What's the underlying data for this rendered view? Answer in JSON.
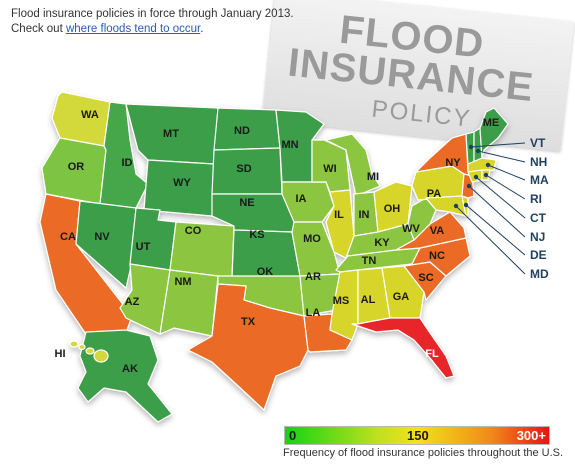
{
  "intro": {
    "line1": "Flood insurance policies in force through January 2013.",
    "line2_prefix": "Check out ",
    "link": "where floods tend to occur",
    "line2_suffix": "."
  },
  "stamp": {
    "line1": "FLOOD",
    "line2": "INSURANCE",
    "line3": "POLICY"
  },
  "legend": {
    "min": "0",
    "mid": "150",
    "max": "300+",
    "caption": "Frequency of flood insurance policies throughout the U.S.",
    "colors": [
      "#12d412",
      "#bfe020",
      "#f3e21a",
      "#f08a1a",
      "#e81414"
    ]
  },
  "states": [
    {
      "id": "wa",
      "label": "WA",
      "color": "#d4d93a"
    },
    {
      "id": "or",
      "label": "OR",
      "color": "#7cc443"
    },
    {
      "id": "ca",
      "label": "CA",
      "color": "#ea6a25"
    },
    {
      "id": "id",
      "label": "ID",
      "color": "#45a74a"
    },
    {
      "id": "nv",
      "label": "NV",
      "color": "#3e9e48"
    },
    {
      "id": "mt",
      "label": "MT",
      "color": "#3e9e48"
    },
    {
      "id": "wy",
      "label": "WY",
      "color": "#3e9e48"
    },
    {
      "id": "ut",
      "label": "UT",
      "color": "#3e9e48"
    },
    {
      "id": "az",
      "label": "AZ",
      "color": "#8cc63f"
    },
    {
      "id": "co",
      "label": "CO",
      "color": "#8cc63f"
    },
    {
      "id": "nm",
      "label": "NM",
      "color": "#8cc63f"
    },
    {
      "id": "nd",
      "label": "ND",
      "color": "#3e9e48"
    },
    {
      "id": "sd",
      "label": "SD",
      "color": "#3e9e48"
    },
    {
      "id": "ne",
      "label": "NE",
      "color": "#3e9e48"
    },
    {
      "id": "ks",
      "label": "KS",
      "color": "#3e9e48"
    },
    {
      "id": "ok",
      "label": "OK",
      "color": "#8cc63f"
    },
    {
      "id": "tx",
      "label": "TX",
      "color": "#ea6a25"
    },
    {
      "id": "mn",
      "label": "MN",
      "color": "#3e9e48"
    },
    {
      "id": "ia",
      "label": "IA",
      "color": "#8cc63f"
    },
    {
      "id": "mo",
      "label": "MO",
      "color": "#8cc63f"
    },
    {
      "id": "ar",
      "label": "AR",
      "color": "#8cc63f"
    },
    {
      "id": "la",
      "label": "LA",
      "color": "#ea6a25"
    },
    {
      "id": "wi",
      "label": "WI",
      "color": "#8cc63f"
    },
    {
      "id": "il",
      "label": "IL",
      "color": "#d8d52a"
    },
    {
      "id": "mi",
      "label": "MI",
      "color": "#8cc63f"
    },
    {
      "id": "in",
      "label": "IN",
      "color": "#8cc63f"
    },
    {
      "id": "oh",
      "label": "OH",
      "color": "#d8d52a"
    },
    {
      "id": "ky",
      "label": "KY",
      "color": "#8cc63f"
    },
    {
      "id": "tn",
      "label": "TN",
      "color": "#8cc63f"
    },
    {
      "id": "ms",
      "label": "MS",
      "color": "#d8d52a"
    },
    {
      "id": "al",
      "label": "AL",
      "color": "#d8d52a"
    },
    {
      "id": "ga",
      "label": "GA",
      "color": "#d8d52a"
    },
    {
      "id": "fl",
      "label": "FL",
      "color": "#e8252a"
    },
    {
      "id": "sc",
      "label": "SC",
      "color": "#ea6a25"
    },
    {
      "id": "nc",
      "label": "NC",
      "color": "#ea6a25"
    },
    {
      "id": "va",
      "label": "VA",
      "color": "#ea6a25"
    },
    {
      "id": "wv",
      "label": "WV",
      "color": "#8cc63f"
    },
    {
      "id": "pa",
      "label": "PA",
      "color": "#d8d52a"
    },
    {
      "id": "ny",
      "label": "NY",
      "color": "#ea6a25"
    },
    {
      "id": "me",
      "label": "ME",
      "color": "#3e9e48"
    },
    {
      "id": "ak",
      "label": "AK",
      "color": "#3e9e48"
    },
    {
      "id": "hi",
      "label": "HI",
      "color": "#d4d93a"
    }
  ],
  "callouts": [
    {
      "id": "vt",
      "label": "VT",
      "color": "#3e9e48"
    },
    {
      "id": "nh",
      "label": "NH",
      "color": "#3e9e48"
    },
    {
      "id": "ma",
      "label": "MA",
      "color": "#d8d52a"
    },
    {
      "id": "ri",
      "label": "RI",
      "color": "#d8d52a"
    },
    {
      "id": "ct",
      "label": "CT",
      "color": "#d8d52a"
    },
    {
      "id": "nj",
      "label": "NJ",
      "color": "#ea6a25"
    },
    {
      "id": "de",
      "label": "DE",
      "color": "#d8d52a"
    },
    {
      "id": "md",
      "label": "MD",
      "color": "#d8d52a"
    }
  ]
}
